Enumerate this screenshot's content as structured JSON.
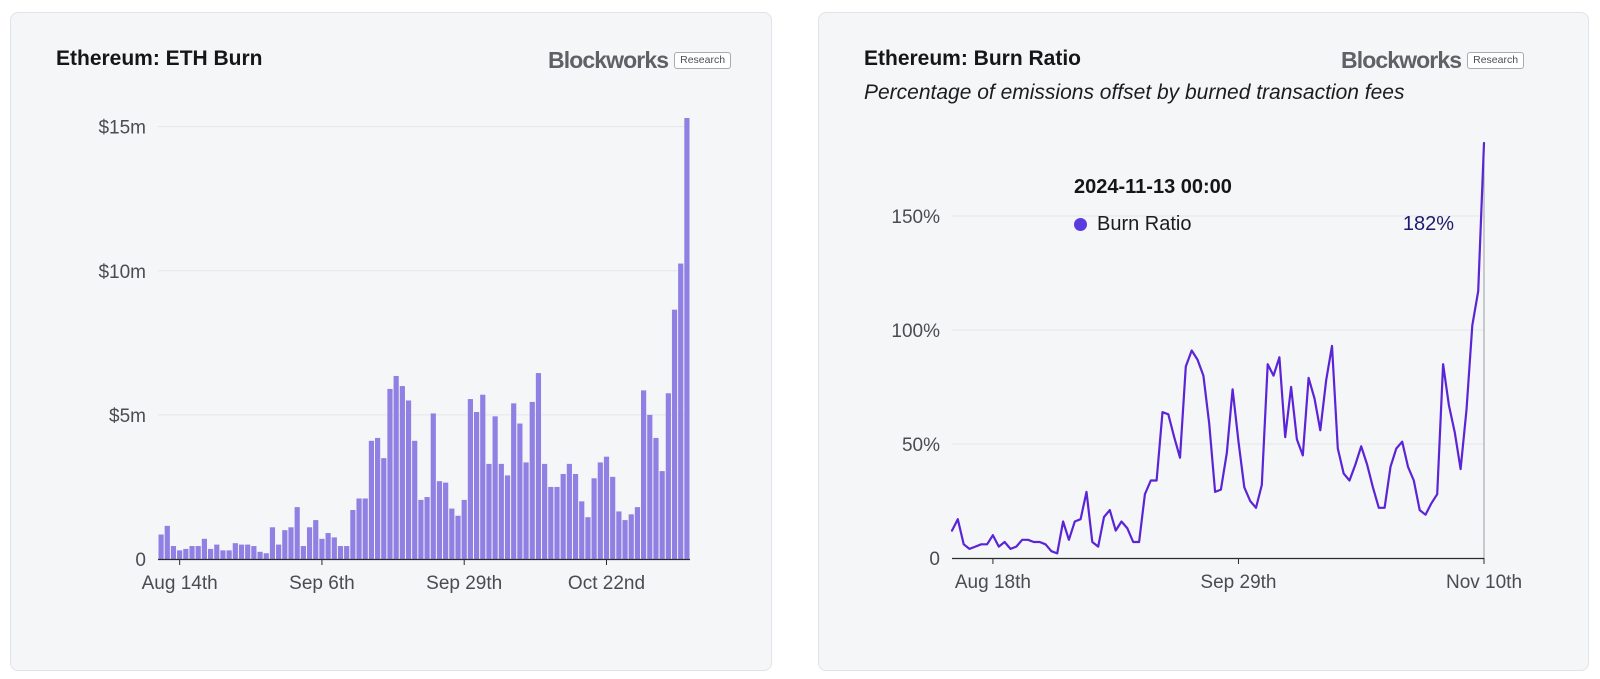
{
  "panels": {
    "left": {
      "title": "Ethereum: ETH Burn",
      "brand": "Blockworks",
      "brand_tag": "Research"
    },
    "right": {
      "title": "Ethereum: Burn Ratio",
      "subtitle": "Percentage of emissions offset by burned transaction fees",
      "brand": "Blockworks",
      "brand_tag": "Research",
      "tooltip": {
        "datetime": "2024-11-13 00:00",
        "series_label": "Burn Ratio",
        "value_text": "182%"
      }
    }
  },
  "colors": {
    "bar": "#9180e3",
    "line": "#5b24d6",
    "grid": "#e3e5e8",
    "axis_text": "#4a4c50",
    "tooltip_dot": "#5b3be0"
  },
  "chart_data": [
    {
      "type": "bar",
      "x_label_dates": [
        "Aug 14th",
        "Sep 6th",
        "Sep 29th",
        "Oct 22nd"
      ],
      "x_start": "2024-08-11",
      "x_end": "2024-11-13",
      "ylim": [
        0,
        15.3
      ],
      "y_ticks": [
        0,
        5,
        10,
        15
      ],
      "y_tick_labels": [
        "0",
        "$5m",
        "$10m",
        "$15m"
      ],
      "grid": true,
      "values": [
        0.85,
        1.15,
        0.45,
        0.3,
        0.35,
        0.45,
        0.45,
        0.7,
        0.35,
        0.5,
        0.3,
        0.3,
        0.55,
        0.5,
        0.5,
        0.45,
        0.25,
        0.2,
        1.1,
        0.5,
        1.0,
        1.1,
        1.8,
        0.45,
        1.1,
        1.35,
        0.7,
        0.9,
        0.75,
        0.45,
        0.45,
        1.7,
        2.1,
        2.1,
        4.1,
        4.2,
        3.5,
        5.9,
        6.35,
        6.0,
        5.5,
        4.1,
        2.05,
        2.15,
        5.05,
        2.7,
        2.65,
        1.75,
        1.5,
        2.05,
        5.55,
        5.1,
        5.7,
        3.3,
        4.95,
        3.3,
        2.9,
        5.4,
        4.7,
        3.35,
        5.45,
        6.45,
        3.3,
        2.5,
        2.5,
        2.95,
        3.3,
        2.95,
        2.0,
        1.45,
        2.8,
        3.35,
        3.55,
        2.85,
        1.65,
        1.35,
        1.55,
        1.8,
        5.85,
        5.0,
        4.2,
        3.05,
        5.75,
        8.65,
        10.25,
        15.3
      ]
    },
    {
      "type": "line",
      "series_name": "Burn Ratio",
      "x_label_dates": [
        "Aug 18th",
        "Sep 29th",
        "Nov 10th"
      ],
      "x_start": "2024-08-11",
      "x_end": "2024-11-13",
      "ylim": [
        0,
        182
      ],
      "y_ticks": [
        0,
        50,
        100,
        150
      ],
      "y_tick_labels": [
        "0",
        "50%",
        "100%",
        "150%"
      ],
      "grid": true,
      "values": [
        12,
        17,
        6,
        4,
        5,
        6,
        6,
        10,
        5,
        7,
        4,
        5,
        8,
        8,
        7,
        7,
        6,
        3,
        2,
        16,
        8,
        16,
        17,
        29,
        7,
        5,
        18,
        21,
        12,
        16,
        13,
        7,
        7,
        28,
        34,
        34,
        64,
        63,
        53,
        44,
        84,
        91,
        87,
        80,
        59,
        29,
        30,
        46,
        74,
        51,
        31,
        25,
        22,
        32,
        85,
        80,
        88,
        53,
        75,
        52,
        45,
        79,
        70,
        56,
        78,
        93,
        48,
        37,
        34,
        41,
        49,
        41,
        31,
        22,
        22,
        40,
        48,
        51,
        40,
        34,
        21,
        19,
        24,
        28,
        85,
        67,
        55,
        39,
        65,
        102,
        117,
        182
      ]
    }
  ]
}
